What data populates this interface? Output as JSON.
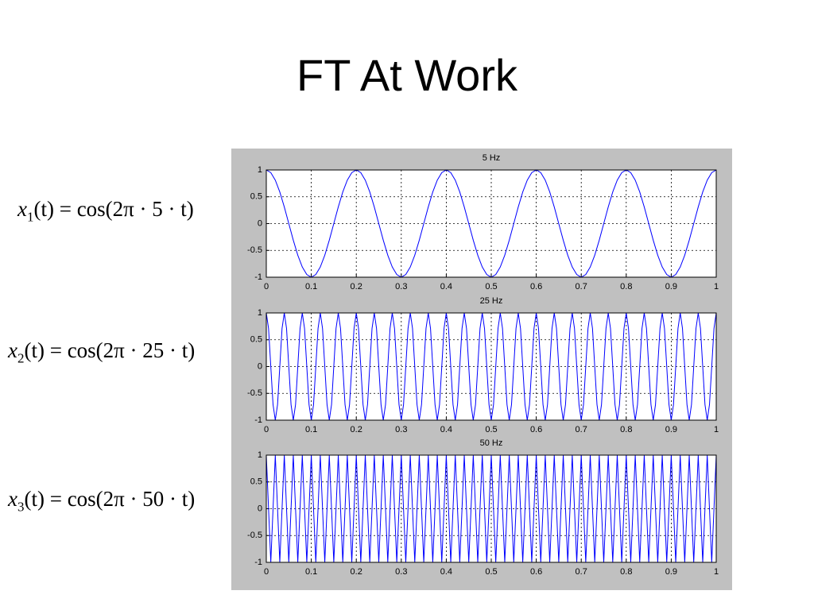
{
  "title": "FT At Work",
  "equations": [
    {
      "name": "x",
      "subscript": "1",
      "body": "(t) = cos(2π · 5 · t)"
    },
    {
      "name": "x",
      "subscript": "2",
      "body": "(t) = cos(2π · 25 · t)"
    },
    {
      "name": "x",
      "subscript": "3",
      "body": "(t) = cos(2π · 50 · t)"
    }
  ],
  "chart_data": [
    {
      "type": "line",
      "title": "5 Hz",
      "color": "#0000ff",
      "grid": true,
      "xlim": [
        0,
        1
      ],
      "xticks": [
        0,
        0.1,
        0.2,
        0.3,
        0.4,
        0.5,
        0.6,
        0.7,
        0.8,
        0.9,
        1
      ],
      "ylim": [
        -1,
        1
      ],
      "yticks": [
        -1,
        -0.5,
        0,
        0.5,
        1
      ],
      "x": [
        0,
        0.01,
        0.02,
        0.03,
        0.04,
        0.05,
        0.06,
        0.07,
        0.08,
        0.09,
        0.1,
        0.11,
        0.12,
        0.13,
        0.14,
        0.15,
        0.16,
        0.17,
        0.18,
        0.19,
        0.2,
        0.21,
        0.22,
        0.23,
        0.24,
        0.25,
        0.26,
        0.27,
        0.28,
        0.29,
        0.3,
        0.31,
        0.32,
        0.33,
        0.34,
        0.35,
        0.36,
        0.37,
        0.38,
        0.39,
        0.4,
        0.41,
        0.42,
        0.43,
        0.44,
        0.45,
        0.46,
        0.47,
        0.48,
        0.49,
        0.5,
        0.51,
        0.52,
        0.53,
        0.54,
        0.55,
        0.56,
        0.57,
        0.58,
        0.59,
        0.6,
        0.61,
        0.62,
        0.63,
        0.64,
        0.65,
        0.66,
        0.67,
        0.68,
        0.69,
        0.7,
        0.71,
        0.72,
        0.73,
        0.74,
        0.75,
        0.76,
        0.77,
        0.78,
        0.79,
        0.8,
        0.81,
        0.82,
        0.83,
        0.84,
        0.85,
        0.86,
        0.87,
        0.88,
        0.89,
        0.9,
        0.91,
        0.92,
        0.93,
        0.94,
        0.95,
        0.96,
        0.97,
        0.98,
        0.99,
        1
      ],
      "values": [
        1,
        0.95,
        0.81,
        0.59,
        0.31,
        0,
        -0.31,
        -0.59,
        -0.81,
        -0.95,
        -1,
        -0.95,
        -0.81,
        -0.59,
        -0.31,
        0,
        0.31,
        0.59,
        0.81,
        0.95,
        1,
        0.95,
        0.81,
        0.59,
        0.31,
        0,
        -0.31,
        -0.59,
        -0.81,
        -0.95,
        -1,
        -0.95,
        -0.81,
        -0.59,
        -0.31,
        0,
        0.31,
        0.59,
        0.81,
        0.95,
        1,
        0.95,
        0.81,
        0.59,
        0.31,
        0,
        -0.31,
        -0.59,
        -0.81,
        -0.95,
        -1,
        -0.95,
        -0.81,
        -0.59,
        -0.31,
        0,
        0.31,
        0.59,
        0.81,
        0.95,
        1,
        0.95,
        0.81,
        0.59,
        0.31,
        0,
        -0.31,
        -0.59,
        -0.81,
        -0.95,
        -1,
        -0.95,
        -0.81,
        -0.59,
        -0.31,
        0,
        0.31,
        0.59,
        0.81,
        0.95,
        1,
        0.95,
        0.81,
        0.59,
        0.31,
        0,
        -0.31,
        -0.59,
        -0.81,
        -0.95,
        -1,
        -0.95,
        -0.81,
        -0.59,
        -0.31,
        0,
        0.31,
        0.59,
        0.81,
        0.95,
        1
      ]
    },
    {
      "type": "line",
      "title": "25 Hz",
      "color": "#0000ff",
      "grid": true,
      "xlim": [
        0,
        1
      ],
      "xticks": [
        0,
        0.1,
        0.2,
        0.3,
        0.4,
        0.5,
        0.6,
        0.7,
        0.8,
        0.9,
        1
      ],
      "ylim": [
        -1,
        1
      ],
      "yticks": [
        -1,
        -0.5,
        0,
        0.5,
        1
      ],
      "x": [
        0,
        0.005,
        0.01,
        0.015,
        0.02,
        0.025,
        0.03,
        0.035,
        0.04,
        0.045,
        0.05,
        0.055,
        0.06,
        0.065,
        0.07,
        0.075,
        0.08,
        0.085,
        0.09,
        0.095,
        0.1,
        0.105,
        0.11,
        0.115,
        0.12,
        0.125,
        0.13,
        0.135,
        0.14,
        0.145,
        0.15,
        0.155,
        0.16,
        0.165,
        0.17,
        0.175,
        0.18,
        0.185,
        0.19,
        0.195,
        0.2,
        0.205,
        0.21,
        0.215,
        0.22,
        0.225,
        0.23,
        0.235,
        0.24,
        0.245,
        0.25,
        0.255,
        0.26,
        0.265,
        0.27,
        0.275,
        0.28,
        0.285,
        0.29,
        0.295,
        0.3,
        0.305,
        0.31,
        0.315,
        0.32,
        0.325,
        0.33,
        0.335,
        0.34,
        0.345,
        0.35,
        0.355,
        0.36,
        0.365,
        0.37,
        0.375,
        0.38,
        0.385,
        0.39,
        0.395,
        0.4,
        0.405,
        0.41,
        0.415,
        0.42,
        0.425,
        0.43,
        0.435,
        0.44,
        0.445,
        0.45,
        0.455,
        0.46,
        0.465,
        0.47,
        0.475,
        0.48,
        0.485,
        0.49,
        0.495,
        0.5,
        0.505,
        0.51,
        0.515,
        0.52,
        0.525,
        0.53,
        0.535,
        0.54,
        0.545,
        0.55,
        0.555,
        0.56,
        0.565,
        0.57,
        0.575,
        0.58,
        0.585,
        0.59,
        0.595,
        0.6,
        0.605,
        0.61,
        0.615,
        0.62,
        0.625,
        0.63,
        0.635,
        0.64,
        0.645,
        0.65,
        0.655,
        0.66,
        0.665,
        0.67,
        0.675,
        0.68,
        0.685,
        0.69,
        0.695,
        0.7,
        0.705,
        0.71,
        0.715,
        0.72,
        0.725,
        0.73,
        0.735,
        0.74,
        0.745,
        0.75,
        0.755,
        0.76,
        0.765,
        0.77,
        0.775,
        0.78,
        0.785,
        0.79,
        0.795,
        0.8,
        0.805,
        0.81,
        0.815,
        0.82,
        0.825,
        0.83,
        0.835,
        0.84,
        0.845,
        0.85,
        0.855,
        0.86,
        0.865,
        0.87,
        0.875,
        0.88,
        0.885,
        0.89,
        0.895,
        0.9,
        0.905,
        0.91,
        0.915,
        0.92,
        0.925,
        0.93,
        0.935,
        0.94,
        0.945,
        0.95,
        0.955,
        0.96,
        0.965,
        0.97,
        0.975,
        0.98,
        0.985,
        0.99,
        0.995,
        1
      ],
      "values": [
        1,
        0.71,
        0,
        -0.71,
        -1,
        -0.71,
        0,
        0.71,
        1,
        0.71,
        0,
        -0.71,
        -1,
        -0.71,
        0,
        0.71,
        1,
        0.71,
        0,
        -0.71,
        -1,
        -0.71,
        0,
        0.71,
        1,
        0.71,
        0,
        -0.71,
        -1,
        -0.71,
        0,
        0.71,
        1,
        0.71,
        0,
        -0.71,
        -1,
        -0.71,
        0,
        0.71,
        1,
        0.71,
        0,
        -0.71,
        -1,
        -0.71,
        0,
        0.71,
        1,
        0.71,
        0,
        -0.71,
        -1,
        -0.71,
        0,
        0.71,
        1,
        0.71,
        0,
        -0.71,
        -1,
        -0.71,
        0,
        0.71,
        1,
        0.71,
        0,
        -0.71,
        -1,
        -0.71,
        0,
        0.71,
        1,
        0.71,
        0,
        -0.71,
        -1,
        -0.71,
        0,
        0.71,
        1,
        0.71,
        0,
        -0.71,
        -1,
        -0.71,
        0,
        0.71,
        1,
        0.71,
        0,
        -0.71,
        -1,
        -0.71,
        0,
        0.71,
        1,
        0.71,
        0,
        -0.71,
        -1,
        -0.71,
        0,
        0.71,
        1,
        0.71,
        0,
        -0.71,
        -1,
        -0.71,
        0,
        0.71,
        1,
        0.71,
        0,
        -0.71,
        -1,
        -0.71,
        0,
        0.71,
        1,
        0.71,
        0,
        -0.71,
        -1,
        -0.71,
        0,
        0.71,
        1,
        0.71,
        0,
        -0.71,
        -1,
        -0.71,
        0,
        0.71,
        1,
        0.71,
        0,
        -0.71,
        -1,
        -0.71,
        0,
        0.71,
        1,
        0.71,
        0,
        -0.71,
        -1,
        -0.71,
        0,
        0.71,
        1,
        0.71,
        0,
        -0.71,
        -1,
        -0.71,
        0,
        0.71,
        1,
        0.71,
        0,
        -0.71,
        -1,
        -0.71,
        0,
        0.71,
        1,
        0.71,
        0,
        -0.71,
        -1,
        -0.71,
        0,
        0.71,
        1,
        0.71,
        0,
        -0.71,
        -1,
        -0.71,
        0,
        0.71,
        1,
        0.71,
        0,
        -0.71,
        -1,
        -0.71,
        0,
        0.71,
        1,
        0.71,
        0,
        -0.71,
        -1,
        -0.71,
        0,
        0.71,
        1
      ]
    },
    {
      "type": "line",
      "title": "50 Hz",
      "color": "#0000ff",
      "grid": true,
      "xlim": [
        0,
        1
      ],
      "xticks": [
        0,
        0.1,
        0.2,
        0.3,
        0.4,
        0.5,
        0.6,
        0.7,
        0.8,
        0.9,
        1
      ],
      "ylim": [
        -1,
        1
      ],
      "yticks": [
        -1,
        -0.5,
        0,
        0.5,
        1
      ],
      "x": [
        0,
        0.005,
        0.01,
        0.015,
        0.02,
        0.025,
        0.03,
        0.035,
        0.04,
        0.045,
        0.05,
        0.055,
        0.06,
        0.065,
        0.07,
        0.075,
        0.08,
        0.085,
        0.09,
        0.095,
        0.1,
        0.105,
        0.11,
        0.115,
        0.12,
        0.125,
        0.13,
        0.135,
        0.14,
        0.145,
        0.15,
        0.155,
        0.16,
        0.165,
        0.17,
        0.175,
        0.18,
        0.185,
        0.19,
        0.195,
        0.2,
        0.205,
        0.21,
        0.215,
        0.22,
        0.225,
        0.23,
        0.235,
        0.24,
        0.245,
        0.25,
        0.255,
        0.26,
        0.265,
        0.27,
        0.275,
        0.28,
        0.285,
        0.29,
        0.295,
        0.3,
        0.305,
        0.31,
        0.315,
        0.32,
        0.325,
        0.33,
        0.335,
        0.34,
        0.345,
        0.35,
        0.355,
        0.36,
        0.365,
        0.37,
        0.375,
        0.38,
        0.385,
        0.39,
        0.395,
        0.4,
        0.405,
        0.41,
        0.415,
        0.42,
        0.425,
        0.43,
        0.435,
        0.44,
        0.445,
        0.45,
        0.455,
        0.46,
        0.465,
        0.47,
        0.475,
        0.48,
        0.485,
        0.49,
        0.495,
        0.5,
        0.505,
        0.51,
        0.515,
        0.52,
        0.525,
        0.53,
        0.535,
        0.54,
        0.545,
        0.55,
        0.555,
        0.56,
        0.565,
        0.57,
        0.575,
        0.58,
        0.585,
        0.59,
        0.595,
        0.6,
        0.605,
        0.61,
        0.615,
        0.62,
        0.625,
        0.63,
        0.635,
        0.64,
        0.645,
        0.65,
        0.655,
        0.66,
        0.665,
        0.67,
        0.675,
        0.68,
        0.685,
        0.69,
        0.695,
        0.7,
        0.705,
        0.71,
        0.715,
        0.72,
        0.725,
        0.73,
        0.735,
        0.74,
        0.745,
        0.75,
        0.755,
        0.76,
        0.765,
        0.77,
        0.775,
        0.78,
        0.785,
        0.79,
        0.795,
        0.8,
        0.805,
        0.81,
        0.815,
        0.82,
        0.825,
        0.83,
        0.835,
        0.84,
        0.845,
        0.85,
        0.855,
        0.86,
        0.865,
        0.87,
        0.875,
        0.88,
        0.885,
        0.89,
        0.895,
        0.9,
        0.905,
        0.91,
        0.915,
        0.92,
        0.925,
        0.93,
        0.935,
        0.94,
        0.945,
        0.95,
        0.955,
        0.96,
        0.965,
        0.97,
        0.975,
        0.98,
        0.985,
        0.99,
        0.995,
        1
      ],
      "values": [
        1,
        0,
        -1,
        0,
        1,
        0,
        -1,
        0,
        1,
        0,
        -1,
        0,
        1,
        0,
        -1,
        0,
        1,
        0,
        -1,
        0,
        1,
        0,
        -1,
        0,
        1,
        0,
        -1,
        0,
        1,
        0,
        -1,
        0,
        1,
        0,
        -1,
        0,
        1,
        0,
        -1,
        0,
        1,
        0,
        -1,
        0,
        1,
        0,
        -1,
        0,
        1,
        0,
        -1,
        0,
        1,
        0,
        -1,
        0,
        1,
        0,
        -1,
        0,
        1,
        0,
        -1,
        0,
        1,
        0,
        -1,
        0,
        1,
        0,
        -1,
        0,
        1,
        0,
        -1,
        0,
        1,
        0,
        -1,
        0,
        1,
        0,
        -1,
        0,
        1,
        0,
        -1,
        0,
        1,
        0,
        -1,
        0,
        1,
        0,
        -1,
        0,
        1,
        0,
        -1,
        0,
        1,
        0,
        -1,
        0,
        1,
        0,
        -1,
        0,
        1,
        0,
        -1,
        0,
        1,
        0,
        -1,
        0,
        1,
        0,
        -1,
        0,
        1,
        0,
        -1,
        0,
        1,
        0,
        -1,
        0,
        1,
        0,
        -1,
        0,
        1,
        0,
        -1,
        0,
        1,
        0,
        -1,
        0,
        1,
        0,
        -1,
        0,
        1,
        0,
        -1,
        0,
        1,
        0,
        -1,
        0,
        1,
        0,
        -1,
        0,
        1,
        0,
        -1,
        0,
        1,
        0,
        -1,
        0,
        1,
        0,
        -1,
        0,
        1,
        0,
        -1,
        0,
        1,
        0,
        -1,
        0,
        1,
        0,
        -1,
        0,
        1,
        0,
        -1,
        0,
        1,
        0,
        -1,
        0,
        1,
        0,
        -1,
        0,
        1,
        0,
        -1,
        0,
        1,
        0,
        -1,
        0,
        1
      ]
    }
  ]
}
